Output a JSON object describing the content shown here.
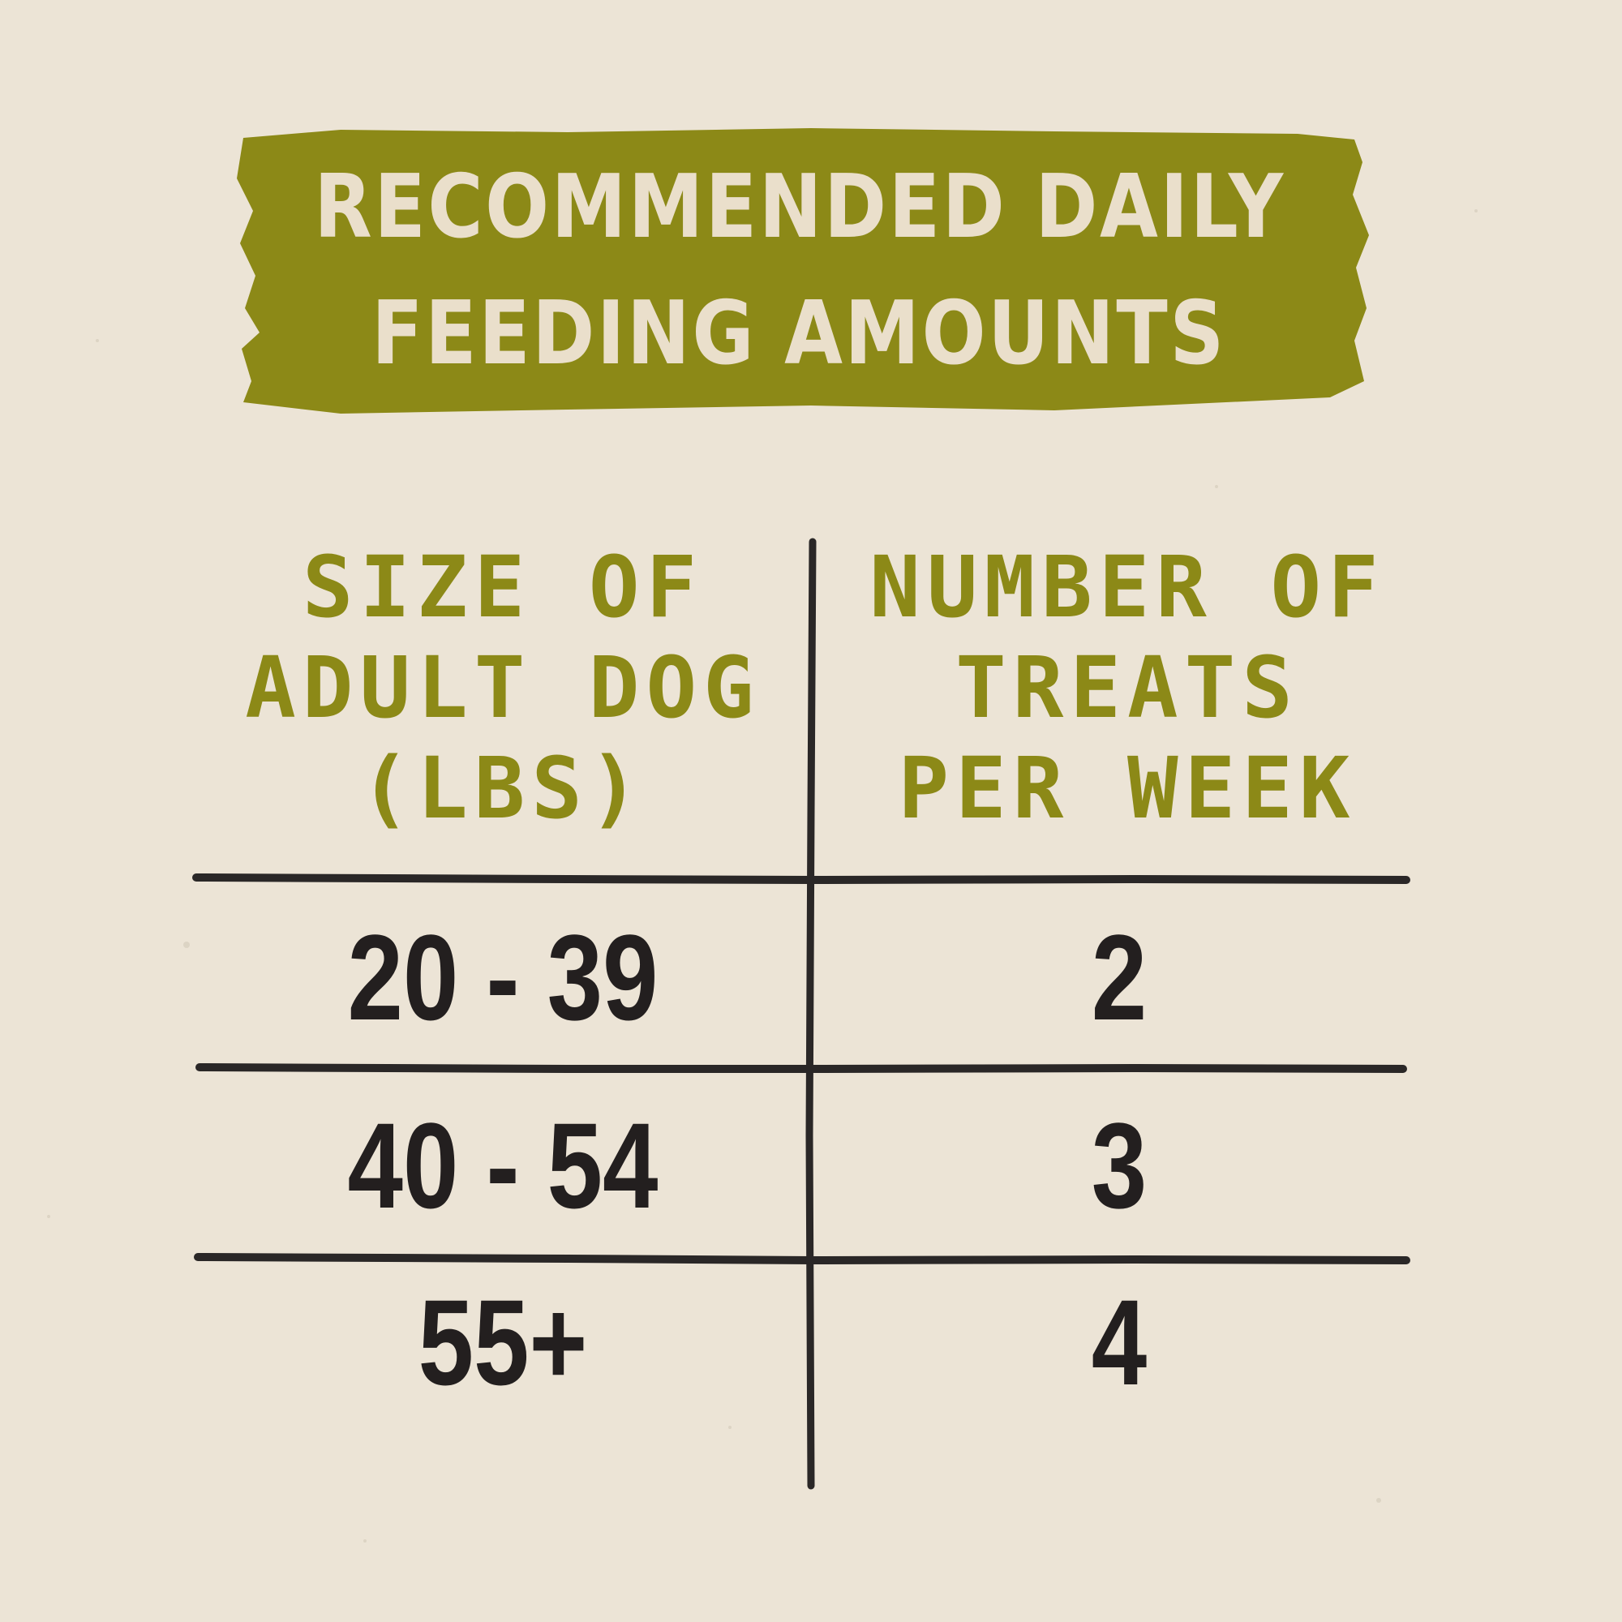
{
  "colors": {
    "paper": "#ece4d6",
    "banner": "#8c8917",
    "banner_text": "#eadfcb",
    "header_text": "#8c8917",
    "cell_text": "#231f1f",
    "lines": "#2a2727"
  },
  "title": {
    "line1": "RECOMMENDED DAILY",
    "line2": "FEEDING AMOUNTS"
  },
  "table": {
    "headers": {
      "left": [
        "SIZE OF",
        "ADULT DOG",
        "(LBS)"
      ],
      "right": [
        "NUMBER OF",
        "TREATS",
        "PER WEEK"
      ]
    },
    "rows": [
      {
        "size": "20 - 39",
        "treats": "2"
      },
      {
        "size": "40 - 54",
        "treats": "3"
      },
      {
        "size": "55+",
        "treats": "4"
      }
    ]
  }
}
